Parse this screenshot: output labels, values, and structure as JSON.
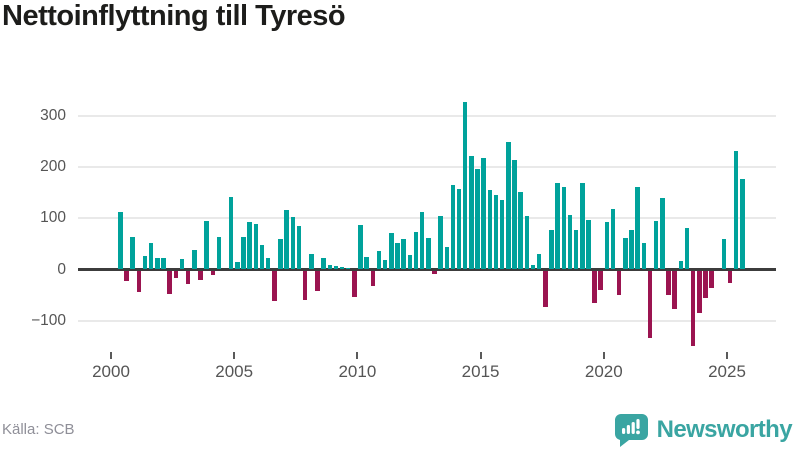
{
  "header": {
    "title": "Nettoinflyttning till Tyresö"
  },
  "footer": {
    "source": "Källa: SCB",
    "brand": "Newsworthy"
  },
  "colors": {
    "positive": "#00a29b",
    "negative": "#9b1450",
    "brand_teal": "#3aa5a2",
    "gridline": "#e9e9e9",
    "zero_line": "#3c3c3c",
    "axis_text": "#555555"
  },
  "chart_data": {
    "type": "bar",
    "title": "Nettoinflyttning till Tyresö",
    "frequency": "quarterly",
    "start_period": "2000 Q2",
    "end_period": "2025 Q3",
    "values": [
      113,
      -19,
      63,
      -41,
      27,
      52,
      22,
      22,
      -44,
      -13,
      21,
      -26,
      39,
      -18,
      94,
      -8,
      64,
      0,
      141,
      14,
      64,
      92,
      88,
      48,
      22,
      -59,
      59,
      116,
      103,
      85,
      -56,
      30,
      -39,
      22,
      9,
      7,
      5,
      2,
      -50,
      86,
      24,
      -30,
      37,
      18,
      72,
      51,
      59,
      28,
      74,
      113,
      62,
      -5,
      105,
      43,
      166,
      157,
      328,
      221,
      197,
      218,
      155,
      145,
      135,
      249,
      213,
      152,
      104,
      8,
      30,
      -70,
      78,
      168,
      162,
      107,
      78,
      168,
      97,
      -62,
      -37,
      92,
      118,
      -46,
      62,
      78,
      162,
      52,
      -131,
      94,
      140,
      -47,
      -75,
      16,
      81,
      -146,
      -82,
      -53,
      -34,
      0,
      59,
      -23,
      231,
      177
    ],
    "x_tick_years": [
      2000,
      2005,
      2010,
      2015,
      2020,
      2025
    ],
    "x_tick_labels": [
      "2000",
      "2005",
      "2010",
      "2015",
      "2020",
      "2025"
    ],
    "y_tick_values": [
      300,
      200,
      100,
      0,
      -100
    ],
    "y_tick_labels": [
      "300",
      "200",
      "100",
      "0",
      "−100"
    ],
    "ylim": [
      -160,
      340
    ],
    "grid": true,
    "legend": false,
    "positive_color": "#00a29b",
    "negative_color": "#9b1450"
  }
}
